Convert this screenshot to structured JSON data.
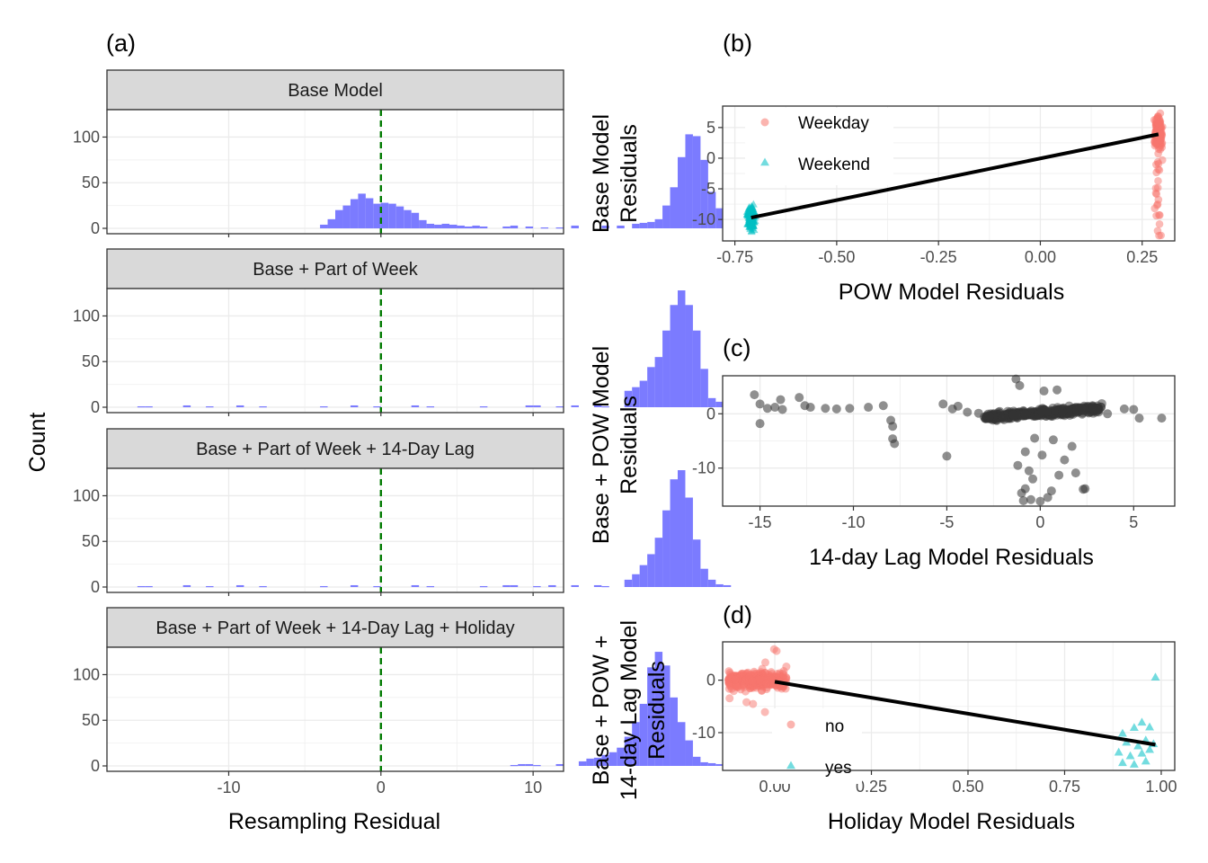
{
  "figure": {
    "panel_a_tag": "(a)",
    "panel_b_tag": "(b)",
    "panel_c_tag": "(c)",
    "panel_d_tag": "(d)"
  },
  "colors": {
    "histogram_fill": "#7B7BFF",
    "weekday": "#F8766D",
    "weekend": "#00BFC4",
    "points_gray": "#333333",
    "fit_line": "#000000",
    "ref_line": "#007a00",
    "strip_bg": "#d9d9d9"
  },
  "chart_data": [
    {
      "type": "bar",
      "panel": "(a)",
      "description": "Faceted histograms of resampling residuals (4 facets, shared x axis)",
      "xlabel": "Resampling Residual",
      "ylabel": "Count",
      "xlim": [
        -18,
        12
      ],
      "ylim": [
        0,
        130
      ],
      "x_ticks": [
        -10,
        0,
        10
      ],
      "y_ticks": [
        0,
        50,
        100
      ],
      "reference_line_x": 0,
      "bin_width": 0.5,
      "bin_start": -16.5,
      "facets": [
        {
          "title": "Base Model",
          "counts": [
            0,
            0,
            0,
            0,
            0,
            0,
            0,
            0,
            0,
            0,
            0,
            0,
            0,
            0,
            0,
            0,
            0,
            0,
            0,
            0,
            0,
            0,
            0,
            0,
            0,
            4,
            10,
            20,
            25,
            32,
            38,
            33,
            27,
            28,
            27,
            24,
            20,
            17,
            9,
            5,
            4,
            5,
            4,
            3,
            2,
            3,
            2,
            0,
            0,
            2,
            3,
            0,
            2,
            0,
            1,
            0,
            1,
            0,
            3,
            0,
            0,
            0,
            3,
            0,
            3,
            0,
            5,
            6,
            7,
            10,
            25,
            45,
            78,
            103,
            101,
            75,
            40,
            22,
            12,
            8,
            3,
            0,
            0,
            0,
            0,
            0,
            0,
            0,
            0,
            0,
            0,
            0
          ]
        },
        {
          "title": "Base + Part of Week",
          "counts": [
            0,
            1,
            1,
            0,
            0,
            0,
            0,
            2,
            0,
            0,
            1,
            0,
            0,
            0,
            2,
            0,
            0,
            1,
            0,
            0,
            0,
            0,
            0,
            0,
            0,
            1,
            0,
            0,
            0,
            2,
            0,
            0,
            1,
            0,
            0,
            0,
            0,
            2,
            0,
            1,
            0,
            0,
            0,
            0,
            0,
            0,
            1,
            0,
            0,
            0,
            0,
            0,
            2,
            2,
            0,
            0,
            1,
            0,
            2,
            0,
            0,
            2,
            1,
            0,
            0,
            18,
            22,
            29,
            44,
            55,
            84,
            112,
            128,
            112,
            84,
            42,
            10,
            6,
            2,
            0,
            0,
            0,
            0,
            0,
            0,
            0,
            0,
            0,
            0,
            0,
            0,
            0
          ]
        },
        {
          "title": "Base + Part of Week + 14-Day Lag",
          "counts": [
            0,
            1,
            1,
            0,
            0,
            0,
            0,
            2,
            0,
            0,
            1,
            0,
            0,
            0,
            2,
            0,
            0,
            1,
            0,
            0,
            0,
            0,
            0,
            0,
            0,
            1,
            0,
            0,
            0,
            2,
            0,
            0,
            1,
            0,
            0,
            0,
            0,
            2,
            0,
            1,
            0,
            0,
            0,
            0,
            0,
            0,
            1,
            0,
            0,
            2,
            2,
            0,
            0,
            1,
            0,
            2,
            0,
            0,
            2,
            0,
            0,
            2,
            1,
            0,
            0,
            8,
            14,
            24,
            36,
            54,
            84,
            118,
            128,
            98,
            52,
            20,
            8,
            3,
            2,
            0,
            0,
            0,
            0,
            0,
            0,
            0,
            0,
            0,
            0,
            0,
            0,
            0
          ]
        },
        {
          "title": "Base + Part of Week + 14-Day Lag + Holiday",
          "counts": [
            0,
            0,
            0,
            0,
            0,
            0,
            0,
            0,
            0,
            0,
            0,
            0,
            0,
            0,
            0,
            0,
            0,
            0,
            0,
            0,
            0,
            0,
            0,
            0,
            0,
            0,
            0,
            0,
            0,
            0,
            0,
            0,
            0,
            0,
            0,
            0,
            0,
            0,
            0,
            0,
            0,
            0,
            0,
            0,
            0,
            0,
            0,
            0,
            0,
            0,
            1,
            2,
            2,
            1,
            0,
            0,
            2,
            0,
            0,
            5,
            8,
            9,
            12,
            15,
            20,
            32,
            48,
            68,
            108,
            125,
            110,
            75,
            48,
            28,
            10,
            4,
            3,
            2,
            0,
            2,
            0,
            0,
            0,
            0,
            0,
            0,
            0,
            0,
            0,
            0,
            0,
            0
          ]
        }
      ]
    },
    {
      "type": "scatter",
      "panel": "(b)",
      "xlabel": "POW Model Residuals",
      "ylabel": "Base Model\nResiduals",
      "ylabel_lines": [
        "Base Model",
        "Residuals"
      ],
      "xlim": [
        -0.78,
        0.33
      ],
      "ylim": [
        -13.5,
        8.5
      ],
      "x_ticks": [
        "-0.75",
        "-0.50",
        "-0.25",
        "0.00",
        "0.25"
      ],
      "x_tick_values": [
        -0.75,
        -0.5,
        -0.25,
        0,
        0.25
      ],
      "y_ticks": [
        -10,
        -5,
        0,
        5
      ],
      "legend": {
        "position": "top-left",
        "entries": [
          "Weekday",
          "Weekend"
        ]
      },
      "fit_line": {
        "x": [
          -0.71,
          0.29
        ],
        "y": [
          -9.7,
          3.9
        ]
      },
      "clusters": [
        {
          "name": "Weekday",
          "shape": "circle",
          "x_center": 0.29,
          "x_spread": 0.012,
          "y_min": -12.8,
          "y_max": 7.6,
          "y_center": 4.2,
          "n": 230
        },
        {
          "name": "Weekend",
          "shape": "triangle",
          "x_center": -0.71,
          "x_spread": 0.012,
          "y_min": -12.8,
          "y_max": -4.5,
          "y_center": -9.8,
          "n": 200
        }
      ]
    },
    {
      "type": "scatter",
      "panel": "(c)",
      "xlabel": "14-day Lag Model Residuals",
      "ylabel": "Base + POW Model\nResiduals",
      "ylabel_lines": [
        "Base + POW Model",
        "Residuals"
      ],
      "xlim": [
        -17,
        7.2
      ],
      "ylim": [
        -17,
        7
      ],
      "x_ticks": [
        -15,
        -10,
        -5,
        0,
        5
      ],
      "y_ticks": [
        -10,
        0
      ],
      "points": [
        [
          -15.3,
          3.5
        ],
        [
          -15.0,
          1.8
        ],
        [
          -14.6,
          1.0
        ],
        [
          -14.2,
          1.2
        ],
        [
          -13.8,
          0.8
        ],
        [
          -13.9,
          2.6
        ],
        [
          -12.9,
          3.0
        ],
        [
          -12.6,
          1.5
        ],
        [
          -12.3,
          1.2
        ],
        [
          -11.5,
          1.0
        ],
        [
          -10.9,
          0.9
        ],
        [
          -10.2,
          1.0
        ],
        [
          -9.2,
          1.2
        ],
        [
          -8.4,
          1.5
        ],
        [
          -8.0,
          -1.2
        ],
        [
          -7.9,
          -2.3
        ],
        [
          -7.9,
          -4.6
        ],
        [
          -7.8,
          -5.5
        ],
        [
          -5.2,
          1.8
        ],
        [
          -5.0,
          -7.8
        ],
        [
          -4.7,
          0.9
        ],
        [
          -4.4,
          1.4
        ],
        [
          -3.9,
          0.3
        ],
        [
          -3.3,
          0.1
        ],
        [
          -15.0,
          -1.8
        ],
        [
          5.0,
          0.8
        ],
        [
          5.3,
          -0.8
        ],
        [
          6.5,
          -0.8
        ],
        [
          4.5,
          0.9
        ],
        [
          3.6,
          0.0
        ],
        [
          -1.2,
          -9.5
        ],
        [
          -0.8,
          -7.0
        ],
        [
          -0.6,
          -10.5
        ],
        [
          -0.4,
          -12.0
        ],
        [
          -0.8,
          -13.8
        ],
        [
          -1.0,
          -14.6
        ],
        [
          -0.5,
          -15.8
        ],
        [
          0.0,
          -16.1
        ],
        [
          0.4,
          -15.4
        ],
        [
          0.6,
          -14.2
        ],
        [
          1.0,
          -11.3
        ],
        [
          1.3,
          -8.5
        ],
        [
          1.7,
          -6.0
        ],
        [
          1.9,
          -10.9
        ],
        [
          2.4,
          -13.8
        ],
        [
          2.3,
          -13.9
        ],
        [
          0.7,
          -4.8
        ],
        [
          -0.3,
          -4.5
        ],
        [
          0.1,
          -7.6
        ],
        [
          -0.9,
          -16.0
        ],
        [
          -1.3,
          6.4
        ],
        [
          -1.1,
          5.2
        ],
        [
          0.2,
          4.2
        ],
        [
          0.9,
          4.4
        ]
      ],
      "dense_cluster": {
        "x_min": -3.0,
        "x_max": 3.3,
        "y_min": -3.0,
        "y_max": 3.5,
        "n": 420
      }
    },
    {
      "type": "scatter",
      "panel": "(d)",
      "xlabel": "Holiday Model Residuals",
      "ylabel": "Base + POW +\n14-day Lag Model\nResiduals",
      "ylabel_lines": [
        "Base + POW +",
        "14-day Lag Model",
        "Residuals"
      ],
      "xlim": [
        -0.135,
        1.035
      ],
      "ylim": [
        -17.2,
        7.3
      ],
      "x_ticks": [
        "0.00",
        "0.25",
        "0.50",
        "0.75",
        "1.00"
      ],
      "x_tick_values": [
        0,
        0.25,
        0.5,
        0.75,
        1.0
      ],
      "y_ticks": [
        -10,
        0
      ],
      "legend": {
        "position": "bottom-left",
        "entries": [
          "no",
          "yes"
        ]
      },
      "fit_line": {
        "x": [
          0.0,
          0.985
        ],
        "y": [
          -0.3,
          -12.3
        ]
      },
      "clusters": [
        {
          "name": "no",
          "shape": "circle",
          "x_min": -0.12,
          "x_max": 0.03,
          "y_min": -6.2,
          "y_max": 6.8,
          "y_center": 0.0,
          "n": 320
        }
      ],
      "yes_points": [
        [
          0.985,
          0.5
        ],
        [
          0.9,
          -10.2
        ],
        [
          0.93,
          -9.1
        ],
        [
          0.95,
          -8.1
        ],
        [
          0.97,
          -9.0
        ],
        [
          0.91,
          -11.9
        ],
        [
          0.94,
          -12.6
        ],
        [
          0.96,
          -11.5
        ],
        [
          0.89,
          -13.8
        ],
        [
          0.92,
          -14.5
        ],
        [
          0.95,
          -14.0
        ],
        [
          0.97,
          -13.3
        ],
        [
          0.9,
          -15.8
        ],
        [
          0.93,
          -16.1
        ],
        [
          0.96,
          -15.5
        ],
        [
          0.98,
          -12.2
        ]
      ]
    }
  ]
}
